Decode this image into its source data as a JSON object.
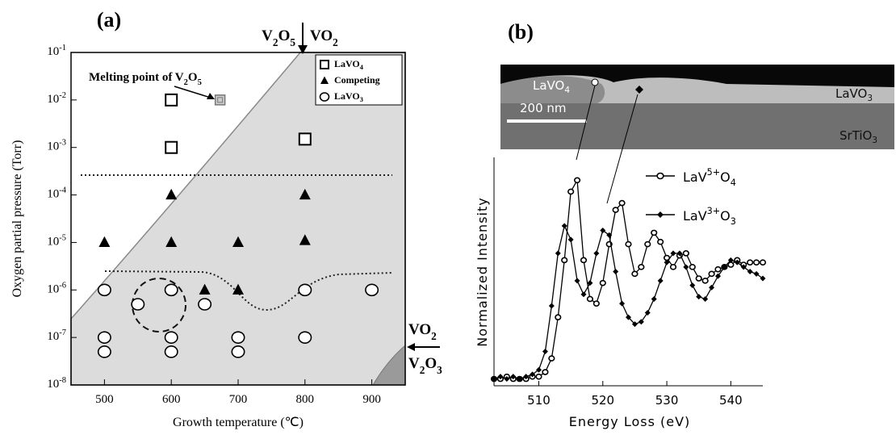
{
  "chart_data": [
    {
      "type": "scatter",
      "panel_label": "(a)",
      "xlabel": "Growth temperature (℃)",
      "ylabel": "Oxygen partial pressure (Torr)",
      "xlim": [
        450,
        950
      ],
      "xticks": [
        500,
        600,
        700,
        800,
        900
      ],
      "ylim": [
        1e-08,
        0.1
      ],
      "yscale": "log",
      "yticks": [
        {
          "value": 1e-08,
          "label": "10-8"
        },
        {
          "value": 1e-07,
          "label": "10-7"
        },
        {
          "value": 1e-06,
          "label": "10-6"
        },
        {
          "value": 1e-05,
          "label": "10-5"
        },
        {
          "value": 0.0001,
          "label": "10-4"
        },
        {
          "value": 0.001,
          "label": "10-3"
        },
        {
          "value": 0.01,
          "label": "10-2"
        },
        {
          "value": 0.1,
          "label": "10-1"
        }
      ],
      "series": [
        {
          "name": "LaVO4",
          "marker": "square",
          "color": "#000000",
          "x": [
            600,
            600,
            800
          ],
          "values": [
            0.01,
            0.001,
            0.0015
          ]
        },
        {
          "name": "Competing",
          "marker": "triangle",
          "color": "#000000",
          "x": [
            600,
            800,
            500,
            600,
            700,
            800,
            650,
            700
          ],
          "values": [
            0.0001,
            0.0001,
            1e-05,
            1e-05,
            1e-05,
            1.1e-05,
            1e-06,
            1e-06
          ]
        },
        {
          "name": "LaVO3",
          "marker": "circle",
          "color": "#000000",
          "x": [
            500,
            600,
            800,
            900,
            550,
            650,
            500,
            600,
            700,
            800,
            500,
            600,
            700
          ],
          "values": [
            1e-06,
            1e-06,
            1e-06,
            1e-06,
            5e-07,
            5e-07,
            1e-07,
            1e-07,
            1e-07,
            1e-07,
            5e-08,
            5e-08,
            5e-08
          ]
        }
      ],
      "melting_point": {
        "text": "Melting point of V2O5",
        "x": 673,
        "y": 0.01
      },
      "phase_labels_top": [
        "V2O5",
        "VO2"
      ],
      "phase_labels_right": [
        "VO2",
        "V2O3"
      ]
    },
    {
      "type": "line",
      "panel_label": "(b)",
      "xlabel": "Energy Loss (eV)",
      "ylabel": "Normalized Intensity",
      "xlim": [
        503,
        545
      ],
      "xticks": [
        510,
        520,
        530,
        540
      ],
      "ylim": [
        0,
        1
      ],
      "x": [
        503,
        504,
        505,
        506,
        507,
        508,
        509,
        510,
        511,
        512,
        513,
        514,
        515,
        516,
        517,
        518,
        519,
        520,
        521,
        522,
        523,
        524,
        525,
        526,
        527,
        528,
        529,
        530,
        531,
        532,
        533,
        534,
        535,
        536,
        537,
        538,
        539,
        540,
        541,
        542,
        543,
        544,
        545
      ],
      "series": [
        {
          "name": "LaV5+O4",
          "marker": "circle",
          "color": "#000000",
          "values": [
            0.03,
            0.03,
            0.04,
            0.03,
            0.03,
            0.03,
            0.04,
            0.04,
            0.06,
            0.12,
            0.3,
            0.55,
            0.85,
            0.9,
            0.55,
            0.38,
            0.36,
            0.45,
            0.62,
            0.77,
            0.8,
            0.62,
            0.49,
            0.52,
            0.62,
            0.67,
            0.63,
            0.56,
            0.52,
            0.57,
            0.58,
            0.52,
            0.47,
            0.46,
            0.49,
            0.51,
            0.52,
            0.53,
            0.55,
            0.53,
            0.54,
            0.54,
            0.54
          ]
        },
        {
          "name": "LaV3+O3",
          "marker": "diamond",
          "color": "#000000",
          "values": [
            0.03,
            0.04,
            0.03,
            0.04,
            0.03,
            0.04,
            0.05,
            0.07,
            0.15,
            0.35,
            0.58,
            0.7,
            0.64,
            0.46,
            0.4,
            0.45,
            0.58,
            0.68,
            0.66,
            0.5,
            0.36,
            0.3,
            0.27,
            0.28,
            0.32,
            0.38,
            0.46,
            0.54,
            0.58,
            0.58,
            0.52,
            0.44,
            0.39,
            0.38,
            0.43,
            0.48,
            0.52,
            0.55,
            0.54,
            0.52,
            0.5,
            0.49,
            0.47
          ]
        }
      ],
      "image_labels": [
        "LaVO4",
        "LaVO3",
        "200 nm",
        "SrTiO3"
      ]
    }
  ]
}
